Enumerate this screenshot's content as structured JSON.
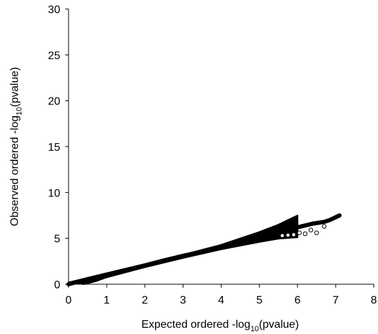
{
  "chart_data": {
    "type": "scatter",
    "title": "",
    "xlabel": {
      "before": "Expected ordered -log",
      "subscript": "10",
      "after": "(pvalue)"
    },
    "ylabel": {
      "before": "Observed ordered -log",
      "subscript": "10",
      "after": "(pvalue)"
    },
    "xlim": [
      0,
      8
    ],
    "ylim": [
      0,
      30
    ],
    "xticks": [
      0,
      1,
      2,
      3,
      4,
      5,
      6,
      7,
      8
    ],
    "yticks": [
      0,
      5,
      10,
      15,
      20,
      25,
      30
    ],
    "grid": false,
    "legend": "none",
    "colors": {
      "points": "#000000",
      "axis": "#000000"
    },
    "series": [
      {
        "marker": "filled-circle",
        "x": [
          0.0,
          0.5,
          1.0,
          1.5,
          2.0,
          2.5,
          3.0,
          3.5,
          4.0,
          4.5,
          5.0,
          5.2,
          5.4,
          5.6,
          5.8,
          6.0,
          6.2,
          6.4,
          6.55,
          6.7,
          6.85,
          7.1
        ],
        "y": [
          0.0,
          0.55,
          1.05,
          1.55,
          2.05,
          2.6,
          3.1,
          3.55,
          4.05,
          4.55,
          5.05,
          5.3,
          5.5,
          5.75,
          6.0,
          6.2,
          6.4,
          6.6,
          6.7,
          6.8,
          7.0,
          7.5
        ]
      },
      {
        "marker": "open-circle",
        "x": [
          5.6,
          5.75,
          5.9,
          6.05,
          6.2,
          6.35,
          6.5,
          6.7
        ],
        "y": [
          5.3,
          5.35,
          5.4,
          5.6,
          5.5,
          5.9,
          5.6,
          6.3
        ]
      },
      {
        "marker": "band-upper",
        "x": [
          0.0,
          1.0,
          2.0,
          3.0,
          4.0,
          5.0,
          5.5,
          5.8,
          6.0
        ],
        "y": [
          0.2,
          1.2,
          2.2,
          3.2,
          4.3,
          5.7,
          6.5,
          7.1,
          7.5
        ]
      },
      {
        "marker": "band-lower",
        "x": [
          0.4,
          0.7,
          1.0,
          2.0,
          3.0,
          4.0,
          5.0,
          5.5,
          6.0
        ],
        "y": [
          0.0,
          0.3,
          0.75,
          1.85,
          2.85,
          3.8,
          4.6,
          4.95,
          5.1
        ]
      }
    ]
  }
}
